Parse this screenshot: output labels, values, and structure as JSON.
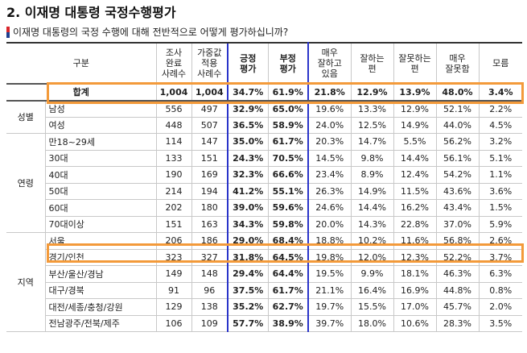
{
  "title": "2. 이재명 대통령 국정수행평가",
  "question": "이재명 대통령의 국정 수행에 대해 전반적으로 어떻게 평가하십니까?",
  "headers": {
    "group": "구분",
    "survey": "조사\n완료\n사례수",
    "weighted": "가중값\n적용\n사례수",
    "positive": "긍정\n평가",
    "negative": "부정\n평가",
    "very_good": "매우\n잘하고\n있음",
    "good": "잘하는\n편",
    "bad": "잘못하는\n편",
    "very_bad": "매우\n잘못함",
    "unknown": "모름"
  },
  "total": {
    "label": "합계",
    "cells": [
      "1,004",
      "1,004",
      "34.7%",
      "61.9%",
      "21.8%",
      "12.9%",
      "13.9%",
      "48.0%",
      "3.4%"
    ]
  },
  "groups": [
    {
      "name": "성별",
      "rows": [
        {
          "label": "남성",
          "cells": [
            "556",
            "497",
            "32.9%",
            "65.0%",
            "19.6%",
            "13.3%",
            "12.9%",
            "52.1%",
            "2.2%"
          ]
        },
        {
          "label": "여성",
          "cells": [
            "448",
            "507",
            "36.5%",
            "58.9%",
            "24.0%",
            "12.5%",
            "14.9%",
            "44.0%",
            "4.5%"
          ]
        }
      ]
    },
    {
      "name": "연령",
      "rows": [
        {
          "label": "만18~29세",
          "cells": [
            "114",
            "147",
            "35.0%",
            "61.7%",
            "20.3%",
            "14.7%",
            "5.5%",
            "56.2%",
            "3.2%"
          ]
        },
        {
          "label": "30대",
          "cells": [
            "133",
            "151",
            "24.3%",
            "70.5%",
            "14.5%",
            "9.8%",
            "14.4%",
            "56.1%",
            "5.1%"
          ]
        },
        {
          "label": "40대",
          "cells": [
            "190",
            "169",
            "32.3%",
            "66.6%",
            "23.4%",
            "8.9%",
            "12.4%",
            "54.2%",
            "1.1%"
          ]
        },
        {
          "label": "50대",
          "cells": [
            "214",
            "194",
            "41.2%",
            "55.1%",
            "26.3%",
            "14.9%",
            "11.5%",
            "43.6%",
            "3.6%"
          ]
        },
        {
          "label": "60대",
          "cells": [
            "202",
            "180",
            "39.0%",
            "59.6%",
            "24.6%",
            "14.4%",
            "16.2%",
            "43.4%",
            "1.5%"
          ]
        },
        {
          "label": "70대이상",
          "cells": [
            "151",
            "163",
            "34.3%",
            "59.8%",
            "20.0%",
            "14.3%",
            "22.8%",
            "37.0%",
            "5.9%"
          ]
        }
      ]
    },
    {
      "name": "지역",
      "rows": [
        {
          "label": "서울",
          "cells": [
            "206",
            "186",
            "29.0%",
            "68.4%",
            "18.8%",
            "10.2%",
            "11.6%",
            "56.8%",
            "2.6%"
          ]
        },
        {
          "label": "경기/인천",
          "cells": [
            "323",
            "327",
            "31.8%",
            "64.5%",
            "19.8%",
            "12.0%",
            "12.3%",
            "52.2%",
            "3.7%"
          ]
        },
        {
          "label": "부산/울산/경남",
          "cells": [
            "149",
            "148",
            "29.4%",
            "64.4%",
            "19.5%",
            "9.9%",
            "18.1%",
            "46.3%",
            "6.3%"
          ]
        },
        {
          "label": "대구/경북",
          "cells": [
            "91",
            "96",
            "37.5%",
            "61.7%",
            "21.1%",
            "16.4%",
            "16.9%",
            "44.8%",
            "0.8%"
          ]
        },
        {
          "label": "대전/세종/충청/강원",
          "cells": [
            "129",
            "138",
            "35.2%",
            "62.7%",
            "19.7%",
            "15.5%",
            "17.0%",
            "45.7%",
            "2.0%"
          ]
        },
        {
          "label": "전남광주/전북/제주",
          "cells": [
            "106",
            "109",
            "57.7%",
            "38.9%",
            "39.7%",
            "18.0%",
            "10.6%",
            "28.3%",
            "3.5%"
          ]
        }
      ]
    }
  ],
  "highlight_color": "#f39a3a",
  "accent_color": "#2a34c9"
}
